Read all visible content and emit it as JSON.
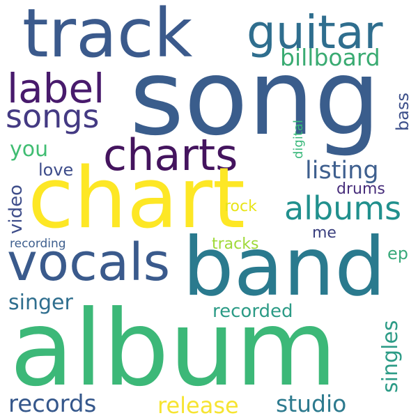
{
  "words": [
    {
      "id": "track",
      "text": "track",
      "color": "#3b5a8c"
    },
    {
      "id": "guitar",
      "text": "guitar",
      "color": "#2f6e8e"
    },
    {
      "id": "billboard",
      "text": "billboard",
      "color": "#3aab72"
    },
    {
      "id": "label",
      "text": "label",
      "color": "#481a6c"
    },
    {
      "id": "song",
      "text": "song",
      "color": "#3a5d8c"
    },
    {
      "id": "songs",
      "text": "songs",
      "color": "#443a83"
    },
    {
      "id": "digital",
      "text": "digital",
      "color": "#37b779"
    },
    {
      "id": "bass",
      "text": "bass",
      "color": "#3c4f8a"
    },
    {
      "id": "charts",
      "text": "charts",
      "color": "#44145e"
    },
    {
      "id": "you",
      "text": "you",
      "color": "#40bd72"
    },
    {
      "id": "listing",
      "text": "listing",
      "color": "#3e5f8e"
    },
    {
      "id": "love",
      "text": "love",
      "color": "#3d4c8a"
    },
    {
      "id": "video",
      "text": "video",
      "color": "#3e4d8a"
    },
    {
      "id": "drums",
      "text": "drums",
      "color": "#472d7b"
    },
    {
      "id": "chart",
      "text": "chart",
      "color": "#fde725"
    },
    {
      "id": "albums",
      "text": "albums",
      "color": "#21908d"
    },
    {
      "id": "rock",
      "text": "rock",
      "color": "#e8e419"
    },
    {
      "id": "me",
      "text": "me",
      "color": "#3a3f7e"
    },
    {
      "id": "recording",
      "text": "recording",
      "color": "#3e5f8e"
    },
    {
      "id": "tracks",
      "text": "tracks",
      "color": "#9fd938"
    },
    {
      "id": "vocals",
      "text": "vocals",
      "color": "#3a5a8c"
    },
    {
      "id": "band",
      "text": "band",
      "color": "#2a7a8e"
    },
    {
      "id": "ep",
      "text": "ep",
      "color": "#38a97a"
    },
    {
      "id": "singer",
      "text": "singer",
      "color": "#2f6e8e"
    },
    {
      "id": "recorded",
      "text": "recorded",
      "color": "#2c9b86"
    },
    {
      "id": "singles",
      "text": "singles",
      "color": "#2c9b86"
    },
    {
      "id": "album",
      "text": "album",
      "color": "#3cb878"
    },
    {
      "id": "records",
      "text": "records",
      "color": "#35578b"
    },
    {
      "id": "release",
      "text": "release",
      "color": "#f6e432"
    },
    {
      "id": "studio",
      "text": "studio",
      "color": "#2d7a8e"
    }
  ]
}
